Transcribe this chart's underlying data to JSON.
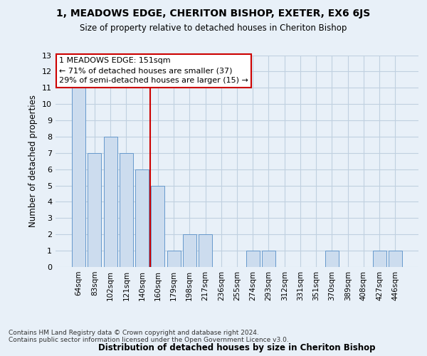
{
  "title": "1, MEADOWS EDGE, CHERITON BISHOP, EXETER, EX6 6JS",
  "subtitle": "Size of property relative to detached houses in Cheriton Bishop",
  "xlabel": "Distribution of detached houses by size in Cheriton Bishop",
  "ylabel": "Number of detached properties",
  "categories": [
    "64sqm",
    "83sqm",
    "102sqm",
    "121sqm",
    "140sqm",
    "160sqm",
    "179sqm",
    "198sqm",
    "217sqm",
    "236sqm",
    "255sqm",
    "274sqm",
    "293sqm",
    "312sqm",
    "331sqm",
    "351sqm",
    "370sqm",
    "389sqm",
    "408sqm",
    "427sqm",
    "446sqm"
  ],
  "values": [
    11,
    7,
    8,
    7,
    6,
    5,
    1,
    2,
    2,
    0,
    0,
    1,
    1,
    0,
    0,
    0,
    1,
    0,
    0,
    1,
    1
  ],
  "bar_color": "#ccdcee",
  "bar_edge_color": "#6699cc",
  "grid_color": "#c0d0e0",
  "background_color": "#e8f0f8",
  "red_line_x": 4.5,
  "annotation_title": "1 MEADOWS EDGE: 151sqm",
  "annotation_line1": "← 71% of detached houses are smaller (37)",
  "annotation_line2": "29% of semi-detached houses are larger (15) →",
  "annotation_box_color": "#ffffff",
  "annotation_box_edge_color": "#cc0000",
  "red_line_color": "#cc0000",
  "ylim": [
    0,
    13
  ],
  "yticks": [
    0,
    1,
    2,
    3,
    4,
    5,
    6,
    7,
    8,
    9,
    10,
    11,
    12,
    13
  ],
  "footnote1": "Contains HM Land Registry data © Crown copyright and database right 2024.",
  "footnote2": "Contains public sector information licensed under the Open Government Licence v3.0."
}
